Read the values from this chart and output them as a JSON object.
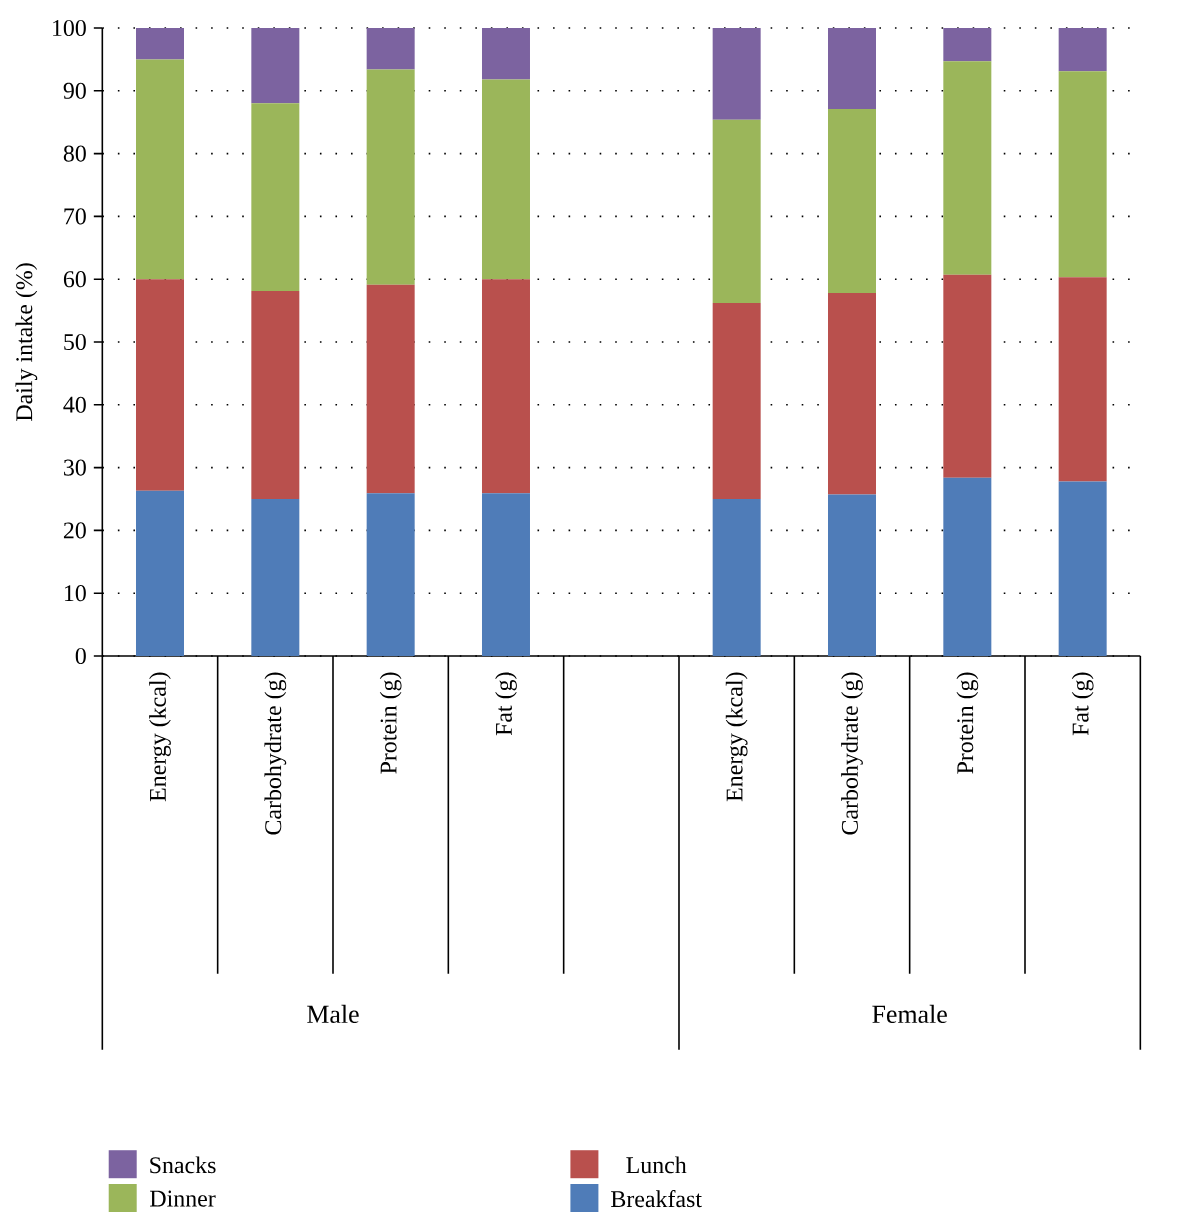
{
  "chart_data": {
    "type": "bar",
    "stacked": true,
    "ylabel": "Daily intake (%)",
    "categories": [
      "Energy (kcal)",
      "Carbohydrate (g)",
      "Protein (g)",
      "Fat (g)",
      null,
      "Energy (kcal)",
      "Carbohydrate (g)",
      "Protein (g)",
      "Fat (g)"
    ],
    "series": [
      {
        "name": "Breakfast",
        "color": "#4f7cb8",
        "values": [
          26.3,
          25.0,
          25.9,
          25.9,
          null,
          25.0,
          25.7,
          28.4,
          27.8
        ]
      },
      {
        "name": "Lunch",
        "color": "#b9504d",
        "values": [
          33.7,
          33.1,
          33.2,
          34.1,
          null,
          31.2,
          32.1,
          32.3,
          32.5
        ]
      },
      {
        "name": "Dinner",
        "color": "#9bb65a",
        "values": [
          35.0,
          29.9,
          34.3,
          31.8,
          null,
          29.2,
          29.3,
          34.0,
          32.8
        ]
      },
      {
        "name": "Snacks",
        "color": "#7c63a0",
        "values": [
          5.0,
          12.0,
          6.6,
          8.2,
          null,
          14.6,
          12.9,
          5.3,
          6.9
        ]
      }
    ],
    "ylim": [
      0,
      100
    ],
    "yticks": [
      0,
      10,
      20,
      30,
      40,
      50,
      60,
      70,
      80,
      90,
      100
    ],
    "grid": "y",
    "legend": "bottom",
    "annotations": [
      "Male",
      "Female"
    ]
  }
}
